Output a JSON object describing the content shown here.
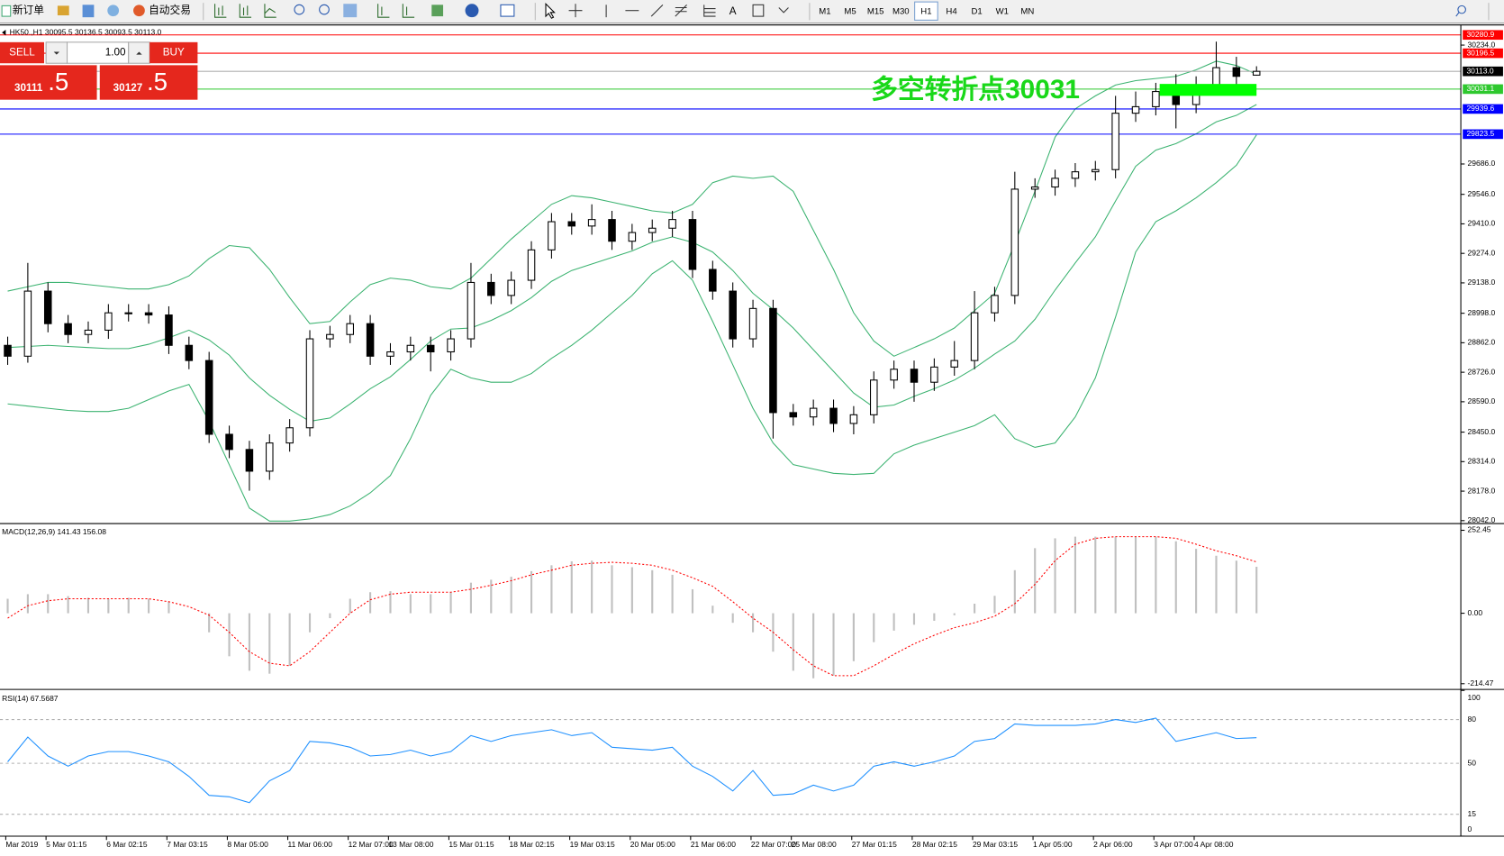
{
  "toolbar": {
    "new_order": "新订单",
    "auto_trading": "自动交易",
    "text_tool": "A",
    "timeframes": [
      "M1",
      "M5",
      "M15",
      "M30",
      "H1",
      "H4",
      "D1",
      "W1",
      "MN"
    ],
    "active": "H1"
  },
  "trade_panel": {
    "sell": "SELL",
    "lot": "1.00",
    "buy": "BUY",
    "sell_main": "30111",
    "sell_pips": ".5",
    "buy_main": "30127",
    "buy_pips": ".5"
  },
  "chart_data": {
    "type": "candlestick",
    "header": "HK50.,H1  30095.5 30136.5 30093.5 30113.0",
    "categories": [
      "Mar 2019",
      null,
      "5 Mar 01:15",
      null,
      null,
      "6 Mar 02:15",
      null,
      null,
      "7 Mar 03:15",
      null,
      null,
      "8 Mar 05:00",
      null,
      null,
      "11 Mar 06:00",
      null,
      null,
      "12 Mar 07:00",
      null,
      "13 Mar 08:00",
      null,
      null,
      "15 Mar 01:15",
      null,
      null,
      "18 Mar 02:15",
      null,
      null,
      "19 Mar 03:15",
      null,
      null,
      "20 Mar 05:00",
      null,
      null,
      "21 Mar 06:00",
      null,
      null,
      "22 Mar 07:00",
      null,
      "25 Mar 08:00",
      null,
      null,
      "27 Mar 01:15",
      null,
      null,
      "28 Mar 02:15",
      null,
      null,
      "29 Mar 03:15",
      null,
      null,
      "1 Apr 05:00",
      null,
      null,
      "2 Apr 06:00",
      null,
      null,
      "3 Apr 07:00",
      null,
      "4 Apr 08:00",
      null,
      null,
      null
    ],
    "open": [
      28850,
      28800,
      29100,
      28950,
      28900,
      28920,
      29000,
      29000,
      28990,
      28850,
      28780,
      28440,
      28370,
      28270,
      28400,
      28470,
      28880,
      28900,
      28950,
      28800,
      28820,
      28850,
      28820,
      28880,
      29140,
      29080,
      29150,
      29290,
      29420,
      29400,
      29430,
      29330,
      29370,
      29390,
      29430,
      29200,
      29100,
      28880,
      29020,
      28540,
      28520,
      28560,
      28490,
      28530,
      28690,
      28740,
      28680,
      28750,
      28780,
      29000,
      29080,
      29570,
      29580,
      29620,
      29650,
      29660,
      29920,
      29950,
      30020,
      29960,
      30050,
      30130,
      30095.5
    ],
    "high": [
      28890,
      29230,
      29140,
      28990,
      28960,
      29040,
      29040,
      29040,
      29030,
      28890,
      28820,
      28480,
      28410,
      28440,
      28510,
      28920,
      28940,
      28990,
      28990,
      28860,
      28890,
      28890,
      28920,
      29230,
      29180,
      29190,
      29330,
      29460,
      29460,
      29500,
      29470,
      29410,
      29430,
      29470,
      29470,
      29240,
      29140,
      29060,
      29060,
      28580,
      28600,
      28600,
      28570,
      28730,
      28780,
      28780,
      28790,
      28870,
      29100,
      29120,
      29650,
      29620,
      29660,
      29690,
      29700,
      30000,
      30020,
      30060,
      30100,
      30090,
      30250,
      30180,
      30136.5
    ],
    "low": [
      28760,
      28770,
      28910,
      28860,
      28860,
      28880,
      28960,
      28950,
      28810,
      28740,
      28400,
      28330,
      28180,
      28230,
      28360,
      28430,
      28840,
      28860,
      28760,
      28760,
      28780,
      28730,
      28780,
      28840,
      29040,
      29040,
      29110,
      29250,
      29360,
      29360,
      29290,
      29290,
      29330,
      29350,
      29160,
      29060,
      28840,
      28840,
      28420,
      28480,
      28480,
      28450,
      28440,
      28490,
      28650,
      28590,
      28640,
      28710,
      28740,
      28960,
      29040,
      29530,
      29540,
      29580,
      29610,
      29620,
      29880,
      29910,
      29850,
      29920,
      30010,
      30040,
      30093.5
    ],
    "close": [
      28800,
      29100,
      28950,
      28900,
      28920,
      29000,
      29000,
      28990,
      28850,
      28780,
      28440,
      28370,
      28270,
      28400,
      28470,
      28880,
      28900,
      28950,
      28800,
      28820,
      28850,
      28820,
      28880,
      29140,
      29080,
      29150,
      29290,
      29420,
      29400,
      29430,
      29330,
      29370,
      29390,
      29430,
      29200,
      29100,
      28880,
      29020,
      28540,
      28520,
      28560,
      28490,
      28530,
      28690,
      28740,
      28680,
      28750,
      28780,
      29000,
      29080,
      29570,
      29580,
      29620,
      29650,
      29660,
      29920,
      29950,
      30020,
      29960,
      30050,
      30130,
      30090,
      30113
    ],
    "bands": {
      "color": "#3cb371",
      "upper": [
        29100,
        29120,
        29140,
        29140,
        29130,
        29120,
        29110,
        29110,
        29130,
        29170,
        29250,
        29310,
        29300,
        29200,
        29070,
        28950,
        28960,
        29050,
        29130,
        29160,
        29150,
        29120,
        29110,
        29160,
        29250,
        29340,
        29420,
        29500,
        29540,
        29530,
        29510,
        29490,
        29470,
        29460,
        29500,
        29600,
        29630,
        29620,
        29630,
        29560,
        29380,
        29200,
        29000,
        28870,
        28800,
        28840,
        28880,
        28930,
        29010,
        29090,
        29320,
        29560,
        29810,
        29940,
        30000,
        30050,
        30070,
        30080,
        30090,
        30120,
        30160,
        30140,
        30100
      ],
      "middle": [
        28840,
        28845,
        28850,
        28845,
        28840,
        28835,
        28835,
        28855,
        28885,
        28920,
        28875,
        28805,
        28700,
        28620,
        28555,
        28500,
        28515,
        28580,
        28650,
        28705,
        28785,
        28870,
        28925,
        28930,
        28965,
        29010,
        29070,
        29145,
        29195,
        29225,
        29255,
        29285,
        29325,
        29350,
        29325,
        29280,
        29195,
        29090,
        29015,
        28930,
        28830,
        28730,
        28630,
        28565,
        28575,
        28615,
        28650,
        28690,
        28745,
        28810,
        28870,
        28970,
        29105,
        29230,
        29350,
        29515,
        29675,
        29750,
        29780,
        29825,
        29880,
        29910,
        29960
      ],
      "lower": [
        28580,
        28570,
        28560,
        28550,
        28545,
        28545,
        28560,
        28600,
        28640,
        28670,
        28500,
        28300,
        28100,
        28040,
        28040,
        28050,
        28070,
        28110,
        28170,
        28250,
        28420,
        28620,
        28740,
        28700,
        28680,
        28680,
        28720,
        28790,
        28850,
        28920,
        29000,
        29080,
        29180,
        29240,
        29150,
        28960,
        28760,
        28560,
        28400,
        28300,
        28280,
        28260,
        28255,
        28260,
        28350,
        28390,
        28420,
        28450,
        28480,
        28530,
        28420,
        28380,
        28400,
        28520,
        28700,
        28980,
        29280,
        29420,
        29470,
        29530,
        29600,
        29680,
        29820
      ]
    },
    "ylim": [
      28033,
      30296
    ],
    "yticks": [
      {
        "value": 30234,
        "label": "30234.0"
      },
      {
        "value": 29686,
        "label": "29686.0"
      },
      {
        "value": 29546,
        "label": "29546.0"
      },
      {
        "value": 29410,
        "label": "29410.0"
      },
      {
        "value": 29274,
        "label": "29274.0"
      },
      {
        "value": 29138,
        "label": "29138.0"
      },
      {
        "value": 28998,
        "label": "28998.0"
      },
      {
        "value": 28862,
        "label": "28862.0"
      },
      {
        "value": 28726,
        "label": "28726.0"
      },
      {
        "value": 28590,
        "label": "28590.0"
      },
      {
        "value": 28450,
        "label": "28450.0"
      },
      {
        "value": 28314,
        "label": "28314.0"
      },
      {
        "value": 28178,
        "label": "28178.0"
      },
      {
        "value": 28042,
        "label": "28042.0"
      }
    ],
    "price_lines": [
      {
        "value": 30280.9,
        "color": "#ff0000"
      },
      {
        "value": 30196.5,
        "color": "#ff0000"
      },
      {
        "value": 30113,
        "label": "30113.0",
        "color": "#000000"
      },
      {
        "value": 30031.1,
        "color": "#2ec82e"
      },
      {
        "value": 29939.6,
        "color": "#0000ff"
      },
      {
        "value": 29823.5,
        "color": "#0000ff"
      }
    ],
    "zone": {
      "low": 30000,
      "high": 30055,
      "color": "#00ff00"
    },
    "annotation": {
      "text": "多空转折点30031",
      "color": "#19d819"
    },
    "macd": {
      "label": "MACD(12,26,9) 141.43 156.08",
      "ylim": [
        -229,
        270
      ],
      "yticks": [
        252.45,
        {
          "value": 0,
          "label": "0.00"
        },
        -214.47
      ],
      "histogram": [
        44,
        58,
        58,
        52,
        47,
        44,
        47,
        44,
        35,
        0,
        -58,
        -131,
        -175,
        -184,
        -160,
        -58,
        -15,
        44,
        64,
        67,
        58,
        58,
        64,
        93,
        102,
        111,
        128,
        146,
        158,
        160,
        146,
        140,
        131,
        117,
        73,
        23,
        -29,
        -58,
        -117,
        -175,
        -198,
        -190,
        -146,
        -88,
        -53,
        -35,
        -23,
        -6,
        29,
        53,
        131,
        198,
        228,
        233,
        233,
        233,
        233,
        233,
        219,
        196,
        175,
        160,
        141.43
      ],
      "signal": [
        -15,
        23,
        38,
        44,
        44,
        44,
        44,
        44,
        35,
        20,
        -6,
        -58,
        -117,
        -152,
        -160,
        -117,
        -58,
        0,
        41,
        58,
        64,
        64,
        64,
        73,
        85,
        99,
        117,
        131,
        146,
        152,
        155,
        152,
        146,
        131,
        108,
        82,
        35,
        -15,
        -58,
        -111,
        -160,
        -190,
        -190,
        -160,
        -125,
        -93,
        -67,
        -44,
        -29,
        -9,
        29,
        88,
        160,
        210,
        228,
        233,
        233,
        233,
        228,
        210,
        190,
        175,
        156.08
      ]
    },
    "rsi": {
      "label": "RSI(14) 67.5687",
      "color": "#1e90ff",
      "ylim": [
        0,
        100
      ],
      "yticks": [
        100,
        80,
        50,
        15,
        0
      ],
      "values": [
        51,
        68,
        55,
        48,
        55,
        58,
        58,
        55,
        51,
        41,
        28,
        27,
        23,
        38,
        45,
        65,
        64,
        61,
        55,
        56,
        59,
        55,
        58,
        69,
        65,
        69,
        71,
        73,
        69,
        71,
        61,
        60,
        59,
        61,
        48,
        41,
        31,
        45,
        28,
        29,
        35,
        31,
        35,
        48,
        51,
        48,
        51,
        55,
        65,
        67,
        77,
        76,
        76,
        76,
        77,
        80,
        78,
        81,
        65,
        68,
        71,
        67,
        67.5687
      ]
    }
  }
}
